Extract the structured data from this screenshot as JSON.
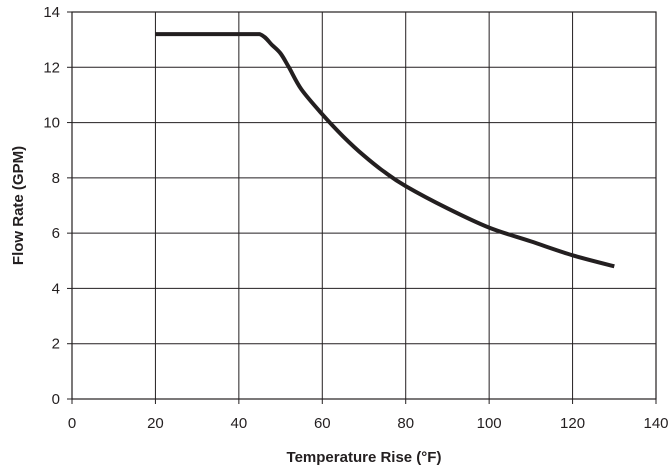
{
  "chart_data": {
    "type": "line",
    "xlabel": "Temperature Rise (°F)",
    "ylabel": "Flow Rate (GPM)",
    "xlim": [
      0,
      140
    ],
    "ylim": [
      0,
      14
    ],
    "x_ticks": [
      0,
      20,
      40,
      60,
      80,
      100,
      120,
      140
    ],
    "y_ticks": [
      0,
      2,
      4,
      6,
      8,
      10,
      12,
      14
    ],
    "grid": true,
    "series": [
      {
        "x": [
          20,
          30,
          40,
          45,
          48,
          50,
          52,
          55,
          60,
          65,
          70,
          75,
          80,
          90,
          100,
          110,
          120,
          130
        ],
        "y": [
          13.2,
          13.2,
          13.2,
          13.2,
          12.8,
          12.5,
          12.0,
          11.2,
          10.3,
          9.5,
          8.8,
          8.2,
          7.7,
          6.9,
          6.2,
          5.7,
          5.2,
          4.8
        ]
      }
    ]
  }
}
